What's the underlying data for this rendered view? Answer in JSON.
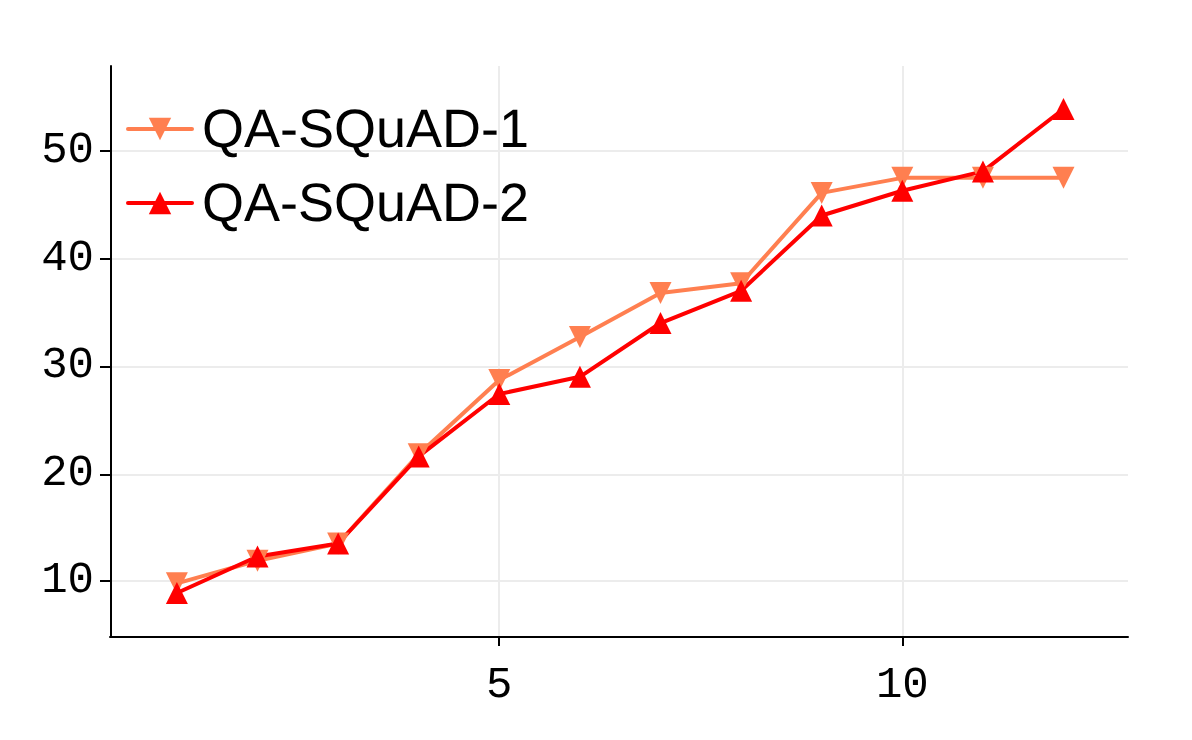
{
  "chart_data": {
    "type": "line",
    "x": [
      1,
      2,
      3,
      4,
      5,
      6,
      7,
      8,
      9,
      10,
      11,
      12
    ],
    "series": [
      {
        "name": "QA-SQuAD-1",
        "color": "#ff7f50",
        "marker": "triangle-down",
        "values": [
          9.8,
          11.9,
          13.5,
          21.8,
          28.7,
          32.7,
          36.8,
          37.7,
          46.1,
          47.5,
          47.5,
          47.5
        ]
      },
      {
        "name": "QA-SQuAD-2",
        "color": "#ff0000",
        "marker": "triangle",
        "values": [
          8.9,
          12.3,
          13.5,
          21.6,
          27.4,
          29.0,
          34.0,
          37.0,
          44.0,
          46.3,
          48.1,
          53.9
        ]
      }
    ],
    "xlim": [
      0.17,
      12.8
    ],
    "xticks": [
      5,
      10
    ],
    "ylim": [
      4.9,
      57.9
    ],
    "yticks": [
      10,
      20,
      30,
      40,
      50
    ],
    "grid": true,
    "legend": "top left",
    "line_style": "solid"
  }
}
